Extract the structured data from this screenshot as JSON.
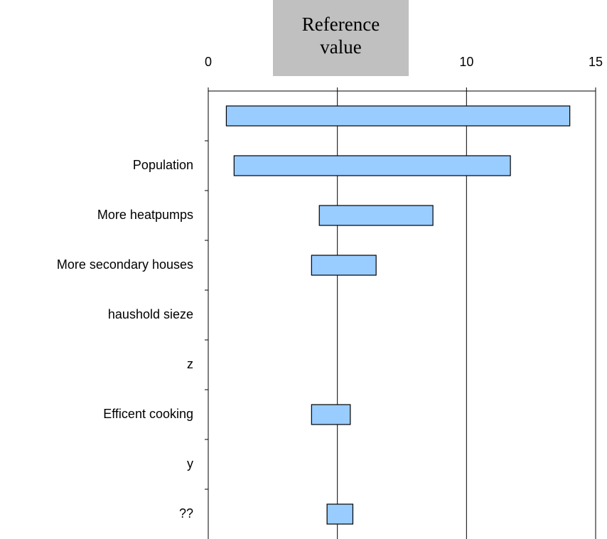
{
  "chart_data": {
    "type": "floating-bar",
    "orientation": "horizontal",
    "annotation": "Reference value",
    "categories": [
      null,
      "Population",
      "More heatpumps",
      "More secondary houses",
      "haushold sieze",
      "z",
      "Efficent cooking",
      "y",
      "??"
    ],
    "low": [
      0.7,
      1.0,
      4.3,
      4.0,
      null,
      null,
      4.0,
      null,
      4.6
    ],
    "high": [
      14.0,
      11.7,
      8.7,
      6.5,
      null,
      null,
      5.5,
      null,
      5.6
    ],
    "color": "#99ccff",
    "xlim": [
      0,
      15
    ],
    "xticks": [
      0,
      5,
      10,
      15
    ],
    "grid": true
  }
}
